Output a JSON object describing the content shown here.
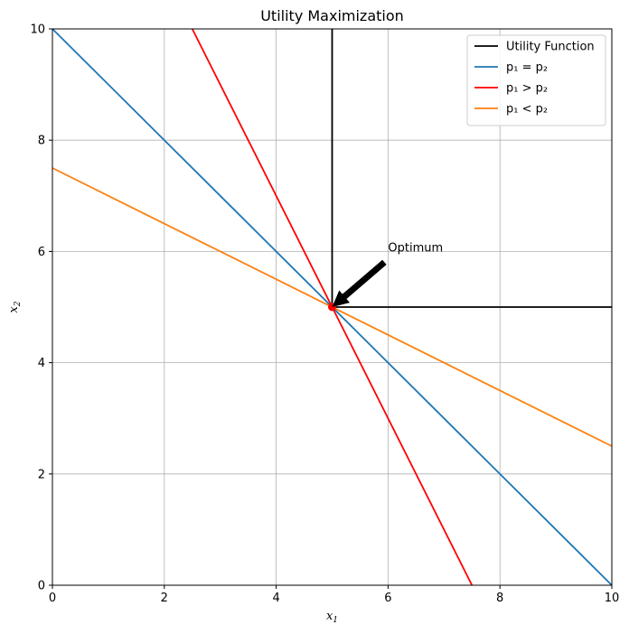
{
  "chart_data": {
    "type": "line",
    "title": "Utility Maximization",
    "xlabel": "x",
    "xlabel_sub": "1",
    "ylabel": "x",
    "ylabel_sub": "2",
    "xlim": [
      0,
      10
    ],
    "ylim": [
      0,
      10
    ],
    "xticks": [
      0,
      2,
      4,
      6,
      8,
      10
    ],
    "yticks": [
      0,
      2,
      4,
      6,
      8,
      10
    ],
    "grid": true,
    "legend_position": "top-right",
    "series": [
      {
        "name": "Utility Function",
        "color": "#000000",
        "points": [
          [
            5,
            10
          ],
          [
            5,
            5
          ],
          [
            10,
            5
          ]
        ]
      },
      {
        "name": "p₁ = p₂",
        "color": "#1f77b4",
        "points": [
          [
            0,
            10
          ],
          [
            10,
            0
          ]
        ]
      },
      {
        "name": "p₁ > p₂",
        "color": "#ff0000",
        "points": [
          [
            2.5,
            10
          ],
          [
            7.5,
            0
          ]
        ]
      },
      {
        "name": "p₁ < p₂",
        "color": "#ff7f0e",
        "points": [
          [
            0,
            7.5
          ],
          [
            10,
            2.5
          ]
        ]
      }
    ],
    "optimum": {
      "x": 5,
      "y": 5,
      "color": "#ff0000"
    },
    "annotation": {
      "text": "Optimum",
      "text_x": 6,
      "text_y": 6,
      "arrow_to": [
        5,
        5
      ]
    }
  }
}
